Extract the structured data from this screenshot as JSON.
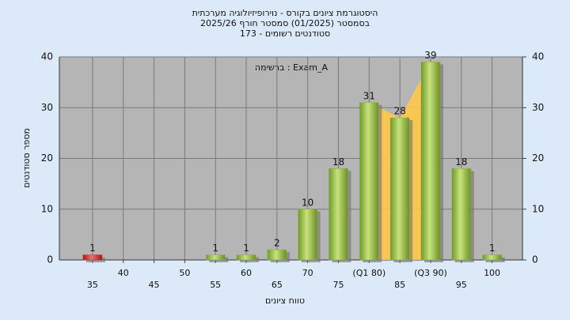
{
  "chart_data": {
    "type": "bar",
    "title": "היסטוגרמת ציונים בקורס - נוירופיזיולוגיה מערכתית",
    "subtitle": "בסמסטר (01/2025) סמסטר חורף 2025/26",
    "subtitle2": "סטודנטים רשומים - 173",
    "annotation": "Exam_A : ברשימה",
    "x_label": "טווח ציונים",
    "y_label": "מספר סטודנטים",
    "categories": [
      "35",
      "40",
      "45",
      "50",
      "55",
      "60",
      "65",
      "70",
      "75",
      "(Q1 80)",
      "85",
      "(Q3 90)",
      "95",
      "100"
    ],
    "values": [
      1,
      0,
      0,
      0,
      1,
      1,
      2,
      10,
      18,
      31,
      28,
      39,
      18,
      1
    ],
    "colors": [
      "#d42a2a",
      "#8cb040",
      "#8cb040",
      "#8cb040",
      "#8cb040",
      "#8cb040",
      "#8cb040",
      "#8cb040",
      "#8cb040",
      "#8cb040",
      "#8cb040",
      "#8cb040",
      "#8cb040",
      "#8cb040"
    ],
    "ylim": [
      0,
      40
    ],
    "yticks": [
      0,
      10,
      20,
      30,
      40
    ],
    "y2lim": [
      0,
      40
    ],
    "y2ticks": [
      0,
      10,
      20,
      30,
      40
    ],
    "grid": true
  }
}
